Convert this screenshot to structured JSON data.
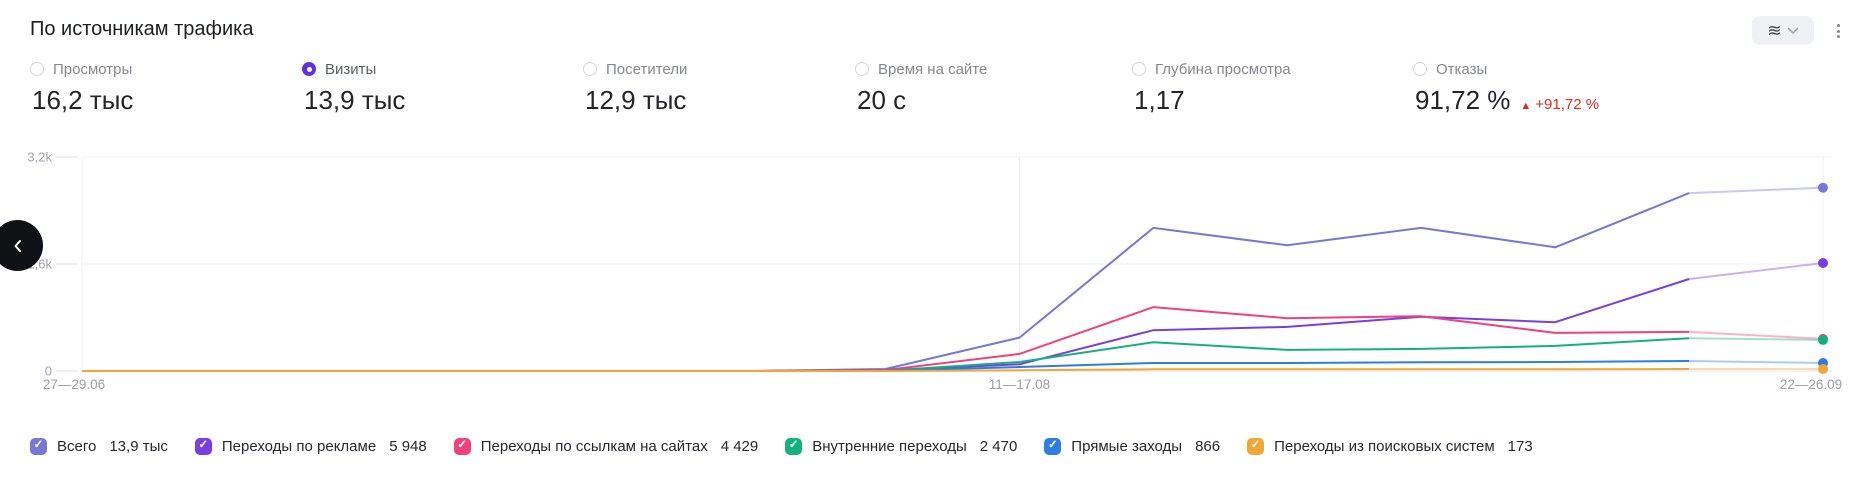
{
  "header": {
    "title": "По источникам трафика"
  },
  "icons": {
    "check": "✓",
    "delta_up": "▲",
    "stream": "≋"
  },
  "metrics": [
    {
      "label": "Просмотры",
      "value": "16,2 тыс",
      "selected": false
    },
    {
      "label": "Визиты",
      "value": "13,9 тыс",
      "selected": true
    },
    {
      "label": "Посетители",
      "value": "12,9 тыс",
      "selected": false
    },
    {
      "label": "Время на сайте",
      "value": "20 с",
      "selected": false
    },
    {
      "label": "Глубина просмотра",
      "value": "1,17",
      "selected": false
    },
    {
      "label": "Отказы",
      "value": "91,72 %",
      "selected": false,
      "delta": "+91,72 %",
      "delta_direction": "up",
      "delta_color": "#df2b18"
    }
  ],
  "chart_data": {
    "type": "line",
    "title": "По источникам трафика",
    "x_axis": {
      "n_points": 14,
      "tick_labels": [
        "27—29.06",
        "11—17.08",
        "22—26.09"
      ],
      "tick_point_indices": [
        0,
        7,
        13
      ]
    },
    "y_axis": {
      "max": 3200,
      "ticks": [
        {
          "label": "0",
          "value": 0
        },
        {
          "label": "1,6k",
          "value": 1600
        },
        {
          "label": "3,2k",
          "value": 3200
        }
      ]
    },
    "grid": true,
    "legend_position": "bottom",
    "partial_last_segment": true,
    "series": [
      {
        "name": "Всего",
        "total": "13,9 тыс",
        "color": "#7578d4",
        "values": [
          0,
          0,
          0,
          0,
          0,
          0,
          30,
          500,
          2140,
          1880,
          2140,
          1850,
          2660,
          2740
        ]
      },
      {
        "name": "Переходы по рекламе",
        "total": "5 948",
        "color": "#7a3ede",
        "values": [
          0,
          0,
          0,
          0,
          0,
          0,
          10,
          100,
          610,
          660,
          810,
          730,
          1375,
          1615
        ]
      },
      {
        "name": "Переходы по ссылкам на сайтах",
        "total": "4 429",
        "color": "#f0407e",
        "values": [
          0,
          0,
          0,
          0,
          0,
          0,
          15,
          255,
          955,
          790,
          820,
          570,
          585,
          480
        ]
      },
      {
        "name": "Внутренние переходы",
        "total": "2 470",
        "color": "#12b27f",
        "values": [
          0,
          0,
          0,
          0,
          0,
          0,
          5,
          135,
          430,
          315,
          330,
          375,
          490,
          465
        ]
      },
      {
        "name": "Прямые заходы",
        "total": "866",
        "color": "#2e7de0",
        "values": [
          0,
          0,
          0,
          0,
          0,
          0,
          5,
          60,
          120,
          120,
          130,
          135,
          150,
          120
        ]
      },
      {
        "name": "Переходы из поисковых систем",
        "total": "173",
        "color": "#f2a735",
        "values": [
          0,
          0,
          0,
          0,
          0,
          0,
          0,
          10,
          25,
          25,
          25,
          25,
          30,
          30
        ]
      }
    ]
  }
}
